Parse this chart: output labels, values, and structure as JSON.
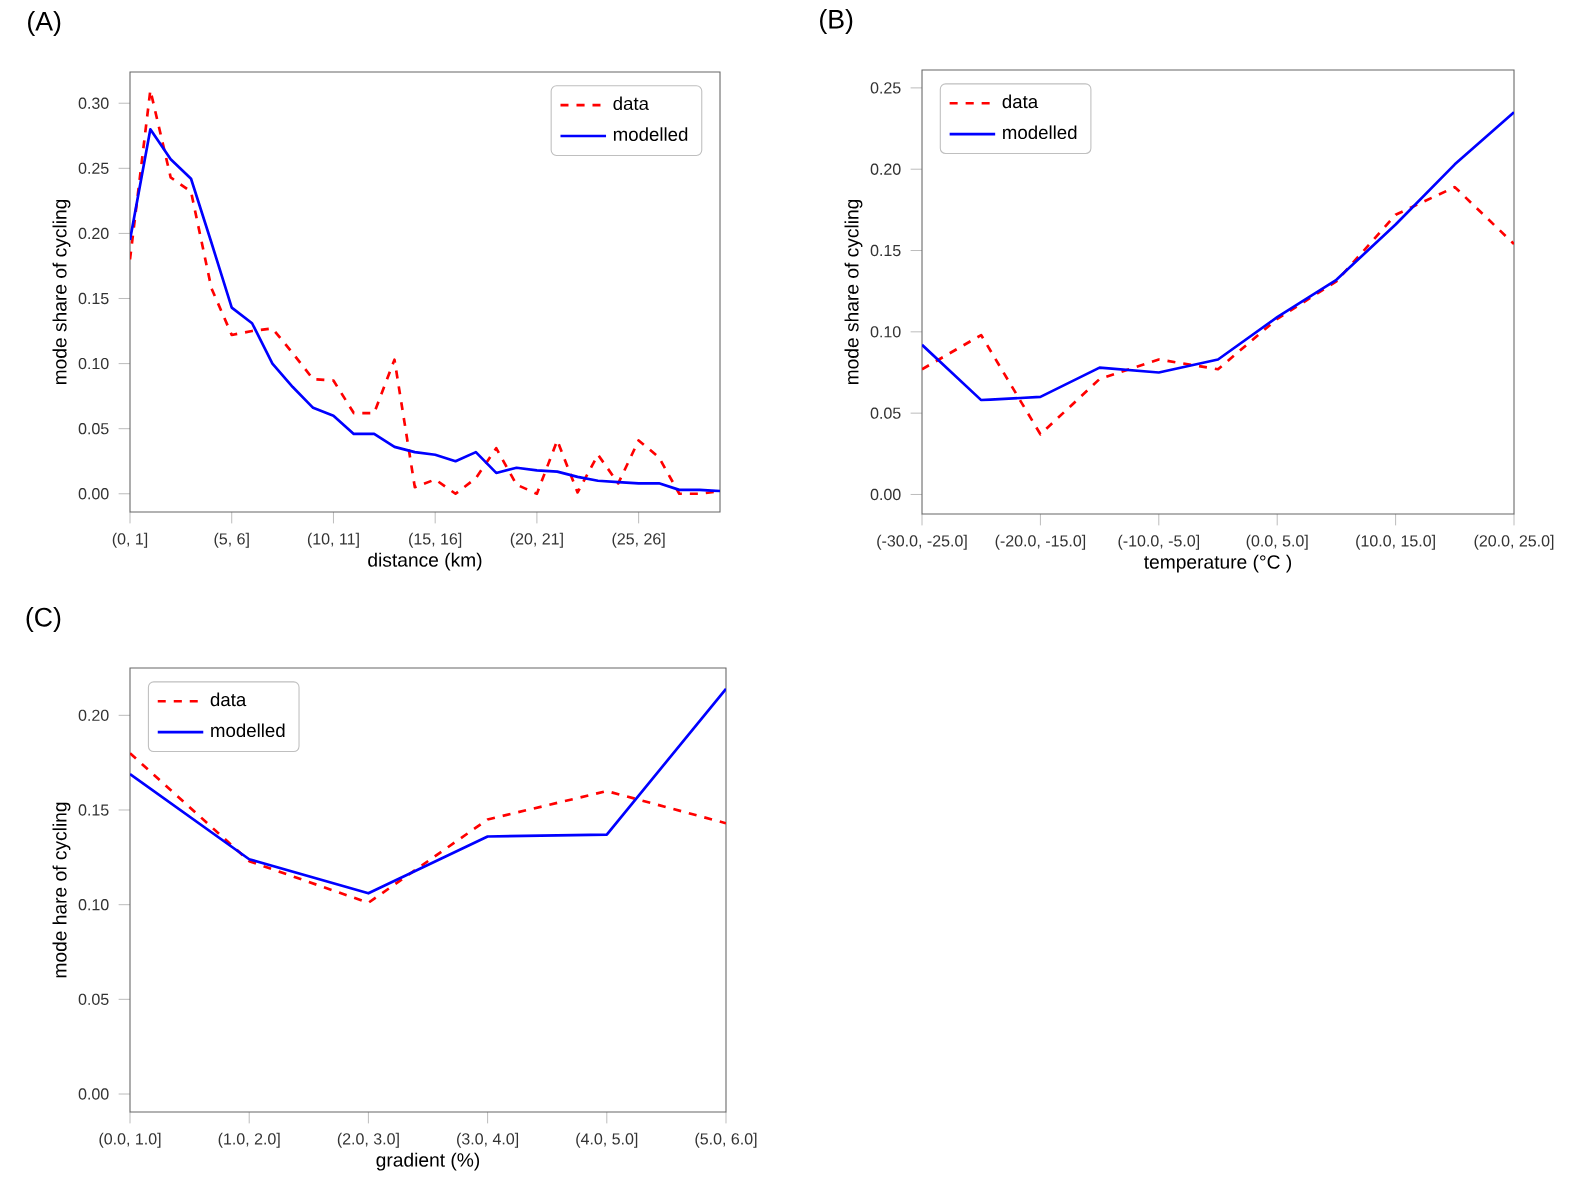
{
  "chart_data": [
    {
      "type": "line",
      "title": "(A)",
      "xlabel": "distance (km)",
      "ylabel": "mode share of cycling",
      "categories": [
        "(0, 1]",
        null,
        null,
        null,
        null,
        "(5, 6]",
        null,
        null,
        null,
        null,
        "(10, 11]",
        null,
        null,
        null,
        null,
        "(15, 16]",
        null,
        null,
        null,
        null,
        "(20, 21]",
        null,
        null,
        null,
        null,
        "(25, 26]",
        null,
        null,
        null,
        null
      ],
      "series": [
        {
          "name": "data",
          "color": "#ff0000",
          "line_style": "dashed",
          "values": [
            0.18,
            0.31,
            0.243,
            0.232,
            0.158,
            0.122,
            0.125,
            0.127,
            0.108,
            0.088,
            0.087,
            0.062,
            0.062,
            0.103,
            0.005,
            0.011,
            0.0,
            0.012,
            0.035,
            0.007,
            0.0,
            0.041,
            0.001,
            0.03,
            0.008,
            0.041,
            0.028,
            0.0,
            0.0,
            0.002
          ]
        },
        {
          "name": "modelled",
          "color": "#0000ff",
          "line_style": "solid",
          "values": [
            0.195,
            0.28,
            0.257,
            0.242,
            0.193,
            0.143,
            0.131,
            0.1,
            0.082,
            0.066,
            0.06,
            0.046,
            0.046,
            0.036,
            0.032,
            0.03,
            0.025,
            0.032,
            0.016,
            0.02,
            0.018,
            0.017,
            0.013,
            0.01,
            0.009,
            0.008,
            0.008,
            0.003,
            0.003,
            0.002
          ]
        }
      ],
      "ylim": [
        -0.014,
        0.324
      ],
      "yticks": [
        {
          "value": 0,
          "label": "0.00"
        },
        {
          "value": 0.05,
          "label": "0.05"
        },
        {
          "value": 0.1,
          "label": "0.10"
        },
        {
          "value": 0.15,
          "label": "0.15"
        },
        {
          "value": 0.2,
          "label": "0.20"
        },
        {
          "value": 0.25,
          "label": "0.25"
        },
        {
          "value": 0.3,
          "label": "0.30"
        }
      ],
      "legend": "top right",
      "grid": false
    },
    {
      "type": "line",
      "title": "(B)",
      "xlabel": "temperature (°C )",
      "ylabel": "mode share of cycling",
      "categories": [
        "(-30.0, -25.0]",
        null,
        "(-20.0, -15.0]",
        null,
        "(-10.0, -5.0]",
        null,
        "(0.0, 5.0]",
        null,
        "(10.0, 15.0]",
        null,
        "(20.0, 25.0]"
      ],
      "series": [
        {
          "name": "data",
          "color": "#ff0000",
          "line_style": "dashed",
          "values": [
            0.077,
            0.098,
            0.037,
            0.071,
            0.083,
            0.077,
            0.108,
            0.131,
            0.172,
            0.189,
            0.154
          ]
        },
        {
          "name": "modelled",
          "color": "#0000ff",
          "line_style": "solid",
          "values": [
            0.092,
            0.058,
            0.06,
            0.078,
            0.075,
            0.083,
            0.109,
            0.132,
            0.166,
            0.203,
            0.235
          ]
        }
      ],
      "ylim": [
        -0.012,
        0.261
      ],
      "yticks": [
        {
          "value": 0,
          "label": "0.00"
        },
        {
          "value": 0.05,
          "label": "0.05"
        },
        {
          "value": 0.1,
          "label": "0.10"
        },
        {
          "value": 0.15,
          "label": "0.15"
        },
        {
          "value": 0.2,
          "label": "0.20"
        },
        {
          "value": 0.25,
          "label": "0.25"
        }
      ],
      "legend": "top left",
      "grid": false
    },
    {
      "type": "line",
      "title": "(C)",
      "xlabel": "gradient (%)",
      "ylabel": "mode hare of cycling",
      "categories": [
        "(0.0, 1.0]",
        "(1.0, 2.0]",
        "(2.0, 3.0]",
        "(3.0, 4.0]",
        "(4.0, 5.0]",
        "(5.0, 6.0]"
      ],
      "series": [
        {
          "name": "data",
          "color": "#ff0000",
          "line_style": "dashed",
          "values": [
            0.18,
            0.123,
            0.101,
            0.145,
            0.16,
            0.143
          ]
        },
        {
          "name": "modelled",
          "color": "#0000ff",
          "line_style": "solid",
          "values": [
            0.169,
            0.124,
            0.106,
            0.136,
            0.137,
            0.214
          ]
        }
      ],
      "ylim": [
        -0.0095,
        0.225
      ],
      "yticks": [
        {
          "value": 0,
          "label": "0.00"
        },
        {
          "value": 0.05,
          "label": "0.05"
        },
        {
          "value": 0.1,
          "label": "0.10"
        },
        {
          "value": 0.15,
          "label": "0.15"
        },
        {
          "value": 0.2,
          "label": "0.20"
        }
      ],
      "legend": "top left",
      "grid": false
    }
  ]
}
